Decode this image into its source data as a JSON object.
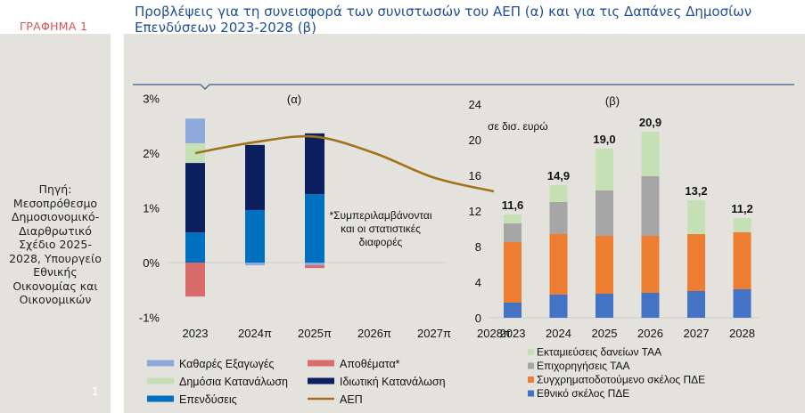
{
  "header": {
    "figure_label": "ΓΡΑΦΗΜΑ 1",
    "title": "Προβλέψεις για τη συνεισφορά των συνιστωσών του ΑΕΠ (α) και για τις Δαπάνες Δημοσίων Επενδύσεων 2023-2028 (β)"
  },
  "sidebar": {
    "source": "Πηγή: Μεσοπρόθεσμο Δημοσιονομικό-Διαρθρωτικό Σχέδιο 2025-2028, Υπουργείο Εθνικής Οικονομίας και Οικονομικών",
    "page_number": "1"
  },
  "colors": {
    "net_exports": "#8eaadb",
    "inventories": "#d96b6b",
    "public_consumption": "#c5e0b4",
    "private_consumption": "#0b1f5e",
    "investment": "#0070c0",
    "gdp": "#a0731a",
    "rrf_loans": "#c5e0b4",
    "rrf_grants": "#a6a6a6",
    "pde_cofinanced": "#ed7d31",
    "pde_national": "#4472c4",
    "divider": "#5a7394"
  },
  "chart_data": [
    {
      "type": "bar",
      "stacked": true,
      "panel_label": "(α)",
      "title": "",
      "xlabel": "",
      "ylabel": "",
      "ylim": [
        -1,
        3
      ],
      "yticks": [
        "-1%",
        "0%",
        "1%",
        "2%",
        "3%"
      ],
      "categories": [
        "2023",
        "2024π",
        "2025π",
        "2026π",
        "2027π",
        "2028π"
      ],
      "series": [
        {
          "name": "Επενδύσεις",
          "key": "investment",
          "values": [
            0.55,
            0.96,
            1.25,
            null,
            null,
            null
          ]
        },
        {
          "name": "Ιδιωτική Κατανάλωση",
          "key": "private_consumption",
          "values": [
            1.27,
            1.19,
            1.11,
            null,
            null,
            null
          ]
        },
        {
          "name": "Δημόσια Κατανάλωση",
          "key": "public_consumption",
          "values": [
            0.36,
            0.02,
            0.0,
            null,
            null,
            null
          ]
        },
        {
          "name": "Καθαρές Εξαγωγές",
          "key": "net_exports",
          "values": [
            0.45,
            -0.05,
            -0.05,
            null,
            null,
            null
          ]
        },
        {
          "name": "Αποθέματα*",
          "key": "inventories",
          "values": [
            -0.62,
            0.0,
            -0.05,
            null,
            null,
            null
          ]
        }
      ],
      "line": {
        "name": "ΑΕΠ",
        "key": "gdp",
        "values": [
          2.0,
          2.2,
          2.3,
          2.0,
          1.55,
          1.3
        ]
      },
      "annotation": "*Συμπεριλαμβάνονται και οι στατιστικές διαφορές",
      "legend": {
        "placement": "bottom",
        "items": [
          {
            "label": "Καθαρές Εξαγωγές",
            "key": "net_exports",
            "kind": "bar"
          },
          {
            "label": "Αποθέματα*",
            "key": "inventories",
            "kind": "bar"
          },
          {
            "label": "Δημόσια Κατανάλωση",
            "key": "public_consumption",
            "kind": "bar"
          },
          {
            "label": "Ιδιωτική Κατανάλωση",
            "key": "private_consumption",
            "kind": "bar"
          },
          {
            "label": "Επενδύσεις",
            "key": "investment",
            "kind": "bar"
          },
          {
            "label": "ΑΕΠ",
            "key": "gdp",
            "kind": "line"
          }
        ]
      },
      "grid": false
    },
    {
      "type": "bar",
      "stacked": true,
      "panel_label": "(β)",
      "title": "",
      "unit_label": "σε δισ. ευρώ",
      "xlabel": "",
      "ylabel": "",
      "ylim": [
        0,
        24
      ],
      "yticks": [
        "0",
        "4",
        "8",
        "12",
        "16",
        "20",
        "24"
      ],
      "categories": [
        "2023",
        "2024",
        "2025",
        "2026",
        "2027",
        "2028"
      ],
      "series": [
        {
          "name": "Εθνικό σκέλος ΠΔΕ",
          "key": "pde_national",
          "values": [
            1.7,
            2.6,
            2.7,
            2.8,
            3.0,
            3.2
          ]
        },
        {
          "name": "Συγχρηματοδοτούμενο σκέλος ΠΔΕ",
          "key": "pde_cofinanced",
          "values": [
            6.8,
            6.8,
            6.5,
            6.4,
            6.4,
            6.4
          ]
        },
        {
          "name": "Επιχορηγήσεις ΤΑΑ",
          "key": "rrf_grants",
          "values": [
            2.1,
            3.6,
            5.1,
            6.7,
            0,
            0
          ]
        },
        {
          "name": "Εκταμιεύσεις δανείων ΤΑΑ",
          "key": "rrf_loans",
          "values": [
            1.0,
            1.9,
            4.7,
            5.0,
            3.8,
            1.6
          ]
        }
      ],
      "totals": [
        "11,6",
        "14,9",
        "19,0",
        "20,9",
        "13,2",
        "11,2"
      ],
      "legend": {
        "placement": "bottom",
        "items": [
          {
            "label": "Εκταμιεύσεις δανείων ΤΑΑ",
            "key": "rrf_loans"
          },
          {
            "label": "Επιχορηγήσεις ΤΑΑ",
            "key": "rrf_grants"
          },
          {
            "label": "Συγχρηματοδοτούμενο σκέλος ΠΔΕ",
            "key": "pde_cofinanced"
          },
          {
            "label": "Εθνικό σκέλος ΠΔΕ",
            "key": "pde_national"
          }
        ]
      },
      "grid": false
    }
  ]
}
